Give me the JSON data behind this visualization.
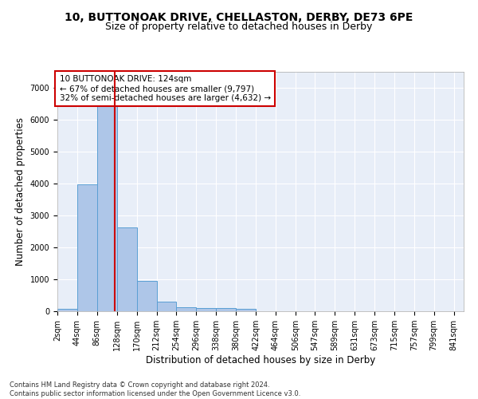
{
  "title_line1": "10, BUTTONOAK DRIVE, CHELLASTON, DERBY, DE73 6PE",
  "title_line2": "Size of property relative to detached houses in Derby",
  "xlabel": "Distribution of detached houses by size in Derby",
  "ylabel": "Number of detached properties",
  "footnote": "Contains HM Land Registry data © Crown copyright and database right 2024.\nContains public sector information licensed under the Open Government Licence v3.0.",
  "bar_left_edges": [
    2,
    44,
    86,
    128,
    170,
    212,
    254,
    296,
    338,
    380,
    422,
    464,
    506,
    547,
    589,
    631,
    673,
    715,
    757,
    799
  ],
  "bar_heights": [
    75,
    3980,
    6560,
    2620,
    960,
    310,
    130,
    110,
    90,
    65,
    0,
    0,
    0,
    0,
    0,
    0,
    0,
    0,
    0,
    0
  ],
  "bin_width": 42,
  "bar_color": "#aec6e8",
  "bar_edge_color": "#5a9fd4",
  "property_size": 124,
  "vline_color": "#cc0000",
  "annotation_line1": "10 BUTTONOAK DRIVE: 124sqm",
  "annotation_line2": "← 67% of detached houses are smaller (9,797)",
  "annotation_line3": "32% of semi-detached houses are larger (4,632) →",
  "annotation_box_color": "#cc0000",
  "ylim": [
    0,
    7500
  ],
  "yticks": [
    0,
    1000,
    2000,
    3000,
    4000,
    5000,
    6000,
    7000
  ],
  "x_tick_labels": [
    "2sqm",
    "44sqm",
    "86sqm",
    "128sqm",
    "170sqm",
    "212sqm",
    "254sqm",
    "296sqm",
    "338sqm",
    "380sqm",
    "422sqm",
    "464sqm",
    "506sqm",
    "547sqm",
    "589sqm",
    "631sqm",
    "673sqm",
    "715sqm",
    "757sqm",
    "799sqm",
    "841sqm"
  ],
  "x_tick_positions": [
    2,
    44,
    86,
    128,
    170,
    212,
    254,
    296,
    338,
    380,
    422,
    464,
    506,
    547,
    589,
    631,
    673,
    715,
    757,
    799,
    841
  ],
  "background_color": "#e8eef8",
  "fig_background_color": "#ffffff",
  "grid_color": "#ffffff",
  "title_fontsize": 10,
  "subtitle_fontsize": 9,
  "axis_label_fontsize": 8.5,
  "tick_fontsize": 7,
  "annotation_fontsize": 7.5
}
